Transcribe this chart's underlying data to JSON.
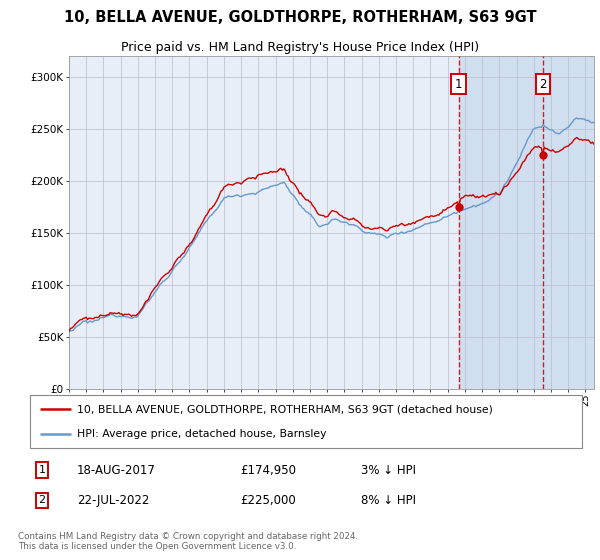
{
  "title": "10, BELLA AVENUE, GOLDTHORPE, ROTHERHAM, S63 9GT",
  "subtitle": "Price paid vs. HM Land Registry's House Price Index (HPI)",
  "ylim": [
    0,
    320000
  ],
  "yticks": [
    0,
    50000,
    100000,
    150000,
    200000,
    250000,
    300000
  ],
  "ytick_labels": [
    "£0",
    "£50K",
    "£100K",
    "£150K",
    "£200K",
    "£250K",
    "£300K"
  ],
  "xlim_start": 1995.0,
  "xlim_end": 2025.5,
  "purchase1_date": 2017.63,
  "purchase1_price": 174950,
  "purchase1_label": "18-AUG-2017",
  "purchase1_amount": "£174,950",
  "purchase1_hpi": "3% ↓ HPI",
  "purchase2_date": 2022.55,
  "purchase2_price": 225000,
  "purchase2_label": "22-JUL-2022",
  "purchase2_amount": "£225,000",
  "purchase2_hpi": "8% ↓ HPI",
  "hpi_color": "#6699cc",
  "price_color": "#cc0000",
  "background_color": "#ffffff",
  "plot_bg_color": "#e8eef8",
  "shaded_region_color": "#d0dff0",
  "grid_color": "#bbbbcc",
  "legend_label_red": "10, BELLA AVENUE, GOLDTHORPE, ROTHERHAM, S63 9GT (detached house)",
  "legend_label_blue": "HPI: Average price, detached house, Barnsley",
  "footer": "Contains HM Land Registry data © Crown copyright and database right 2024.\nThis data is licensed under the Open Government Licence v3.0.",
  "title_fontsize": 10.5,
  "subtitle_fontsize": 9
}
